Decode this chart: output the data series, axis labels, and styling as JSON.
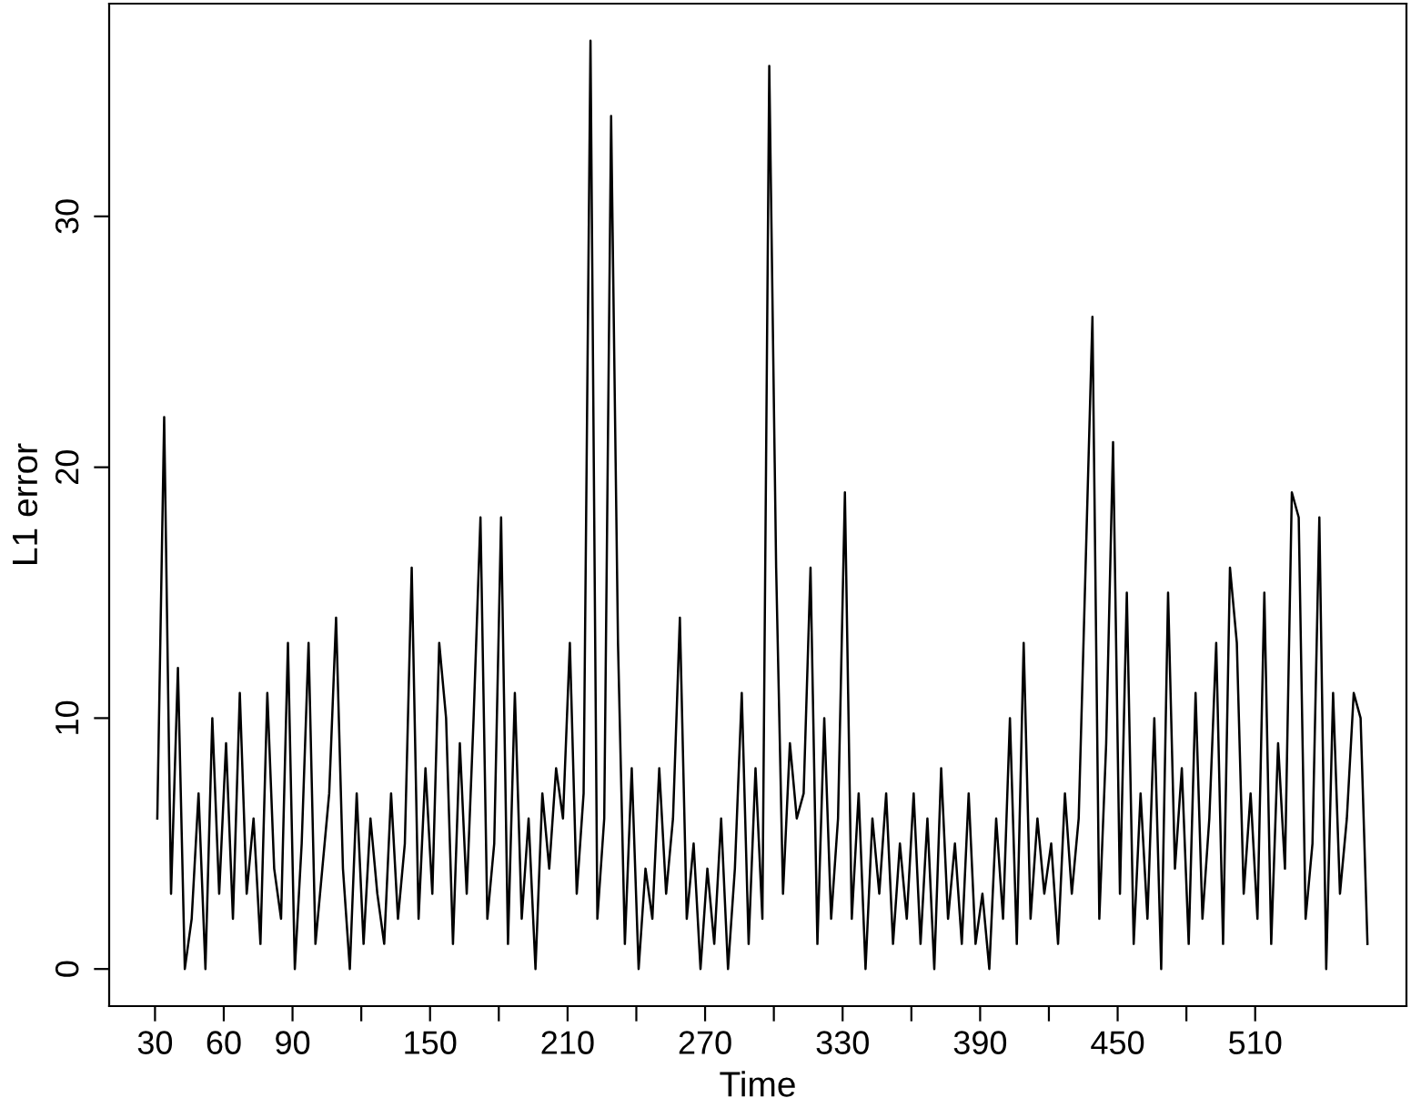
{
  "chart_data": {
    "type": "line",
    "xlabel": "Time",
    "ylabel": "L1 error",
    "xlim": [
      10,
      576
    ],
    "ylim": [
      -1.48,
      38.48
    ],
    "xticks": [
      30,
      60,
      90,
      {
        "value": 120,
        "label": null
      },
      150,
      {
        "value": 180,
        "label": null
      },
      210,
      {
        "value": 240,
        "label": null
      },
      270,
      {
        "value": 300,
        "label": null
      },
      330,
      {
        "value": 360,
        "label": null
      },
      390,
      {
        "value": 420,
        "label": null
      },
      450,
      {
        "value": 480,
        "label": null
      },
      510
    ],
    "yticks": [
      0,
      10,
      20,
      30
    ],
    "marker": "none",
    "line_style": "solid",
    "x": [
      31,
      34,
      37,
      40,
      43,
      46,
      49,
      52,
      55,
      58,
      61,
      64,
      67,
      70,
      73,
      76,
      79,
      82,
      85,
      88,
      91,
      94,
      97,
      100,
      103,
      106,
      109,
      112,
      115,
      118,
      121,
      124,
      127,
      130,
      133,
      136,
      139,
      142,
      145,
      148,
      151,
      154,
      157,
      160,
      163,
      166,
      169,
      172,
      175,
      178,
      181,
      184,
      187,
      190,
      193,
      196,
      199,
      202,
      205,
      208,
      211,
      214,
      217,
      220,
      223,
      226,
      229,
      232,
      235,
      238,
      241,
      244,
      247,
      250,
      253,
      256,
      259,
      262,
      265,
      268,
      271,
      274,
      277,
      280,
      283,
      286,
      289,
      292,
      295,
      298,
      301,
      304,
      307,
      310,
      313,
      316,
      319,
      322,
      325,
      328,
      331,
      334,
      337,
      340,
      343,
      346,
      349,
      352,
      355,
      358,
      361,
      364,
      367,
      370,
      373,
      376,
      379,
      382,
      385,
      388,
      391,
      394,
      397,
      400,
      403,
      406,
      409,
      412,
      415,
      418,
      421,
      424,
      427,
      430,
      433,
      436,
      439,
      442,
      445,
      448,
      451,
      454,
      457,
      460,
      463,
      466,
      469,
      472,
      475,
      478,
      481,
      484,
      487,
      490,
      493,
      496,
      499,
      502,
      505,
      508,
      511,
      514,
      517,
      520,
      523,
      526,
      529,
      532,
      535,
      538,
      541,
      544,
      547,
      550,
      553,
      556,
      559
    ],
    "series": [
      {
        "color": "#000000",
        "values": [
          6,
          22,
          3,
          12,
          0,
          2,
          7,
          0,
          10,
          3,
          9,
          2,
          11,
          3,
          6,
          1,
          11,
          4,
          2,
          13,
          0,
          5,
          13,
          1,
          4,
          7,
          14,
          4,
          0,
          7,
          1,
          6,
          3,
          1,
          7,
          2,
          5,
          16,
          2,
          8,
          3,
          13,
          10,
          1,
          9,
          3,
          10,
          18,
          2,
          5,
          18,
          1,
          11,
          2,
          6,
          0,
          7,
          4,
          8,
          6,
          13,
          3,
          7,
          37,
          2,
          6,
          34,
          13,
          1,
          8,
          0,
          4,
          2,
          8,
          3,
          6,
          14,
          2,
          5,
          0,
          4,
          1,
          6,
          0,
          4,
          11,
          1,
          8,
          2,
          36,
          16,
          3,
          9,
          6,
          7,
          16,
          1,
          10,
          2,
          6,
          19,
          2,
          7,
          0,
          6,
          3,
          7,
          1,
          5,
          2,
          7,
          1,
          6,
          0,
          8,
          2,
          5,
          1,
          7,
          1,
          3,
          0,
          6,
          2,
          10,
          1,
          13,
          2,
          6,
          3,
          5,
          1,
          7,
          3,
          6,
          16,
          26,
          2,
          9,
          21,
          3,
          15,
          1,
          7,
          2,
          10,
          0,
          15,
          4,
          8,
          1,
          11,
          2,
          6,
          13,
          1,
          16,
          13,
          3,
          7,
          2,
          15,
          1,
          9,
          4,
          19,
          18,
          2,
          5,
          18,
          0,
          11,
          3,
          6,
          11,
          10,
          1
        ]
      }
    ]
  }
}
